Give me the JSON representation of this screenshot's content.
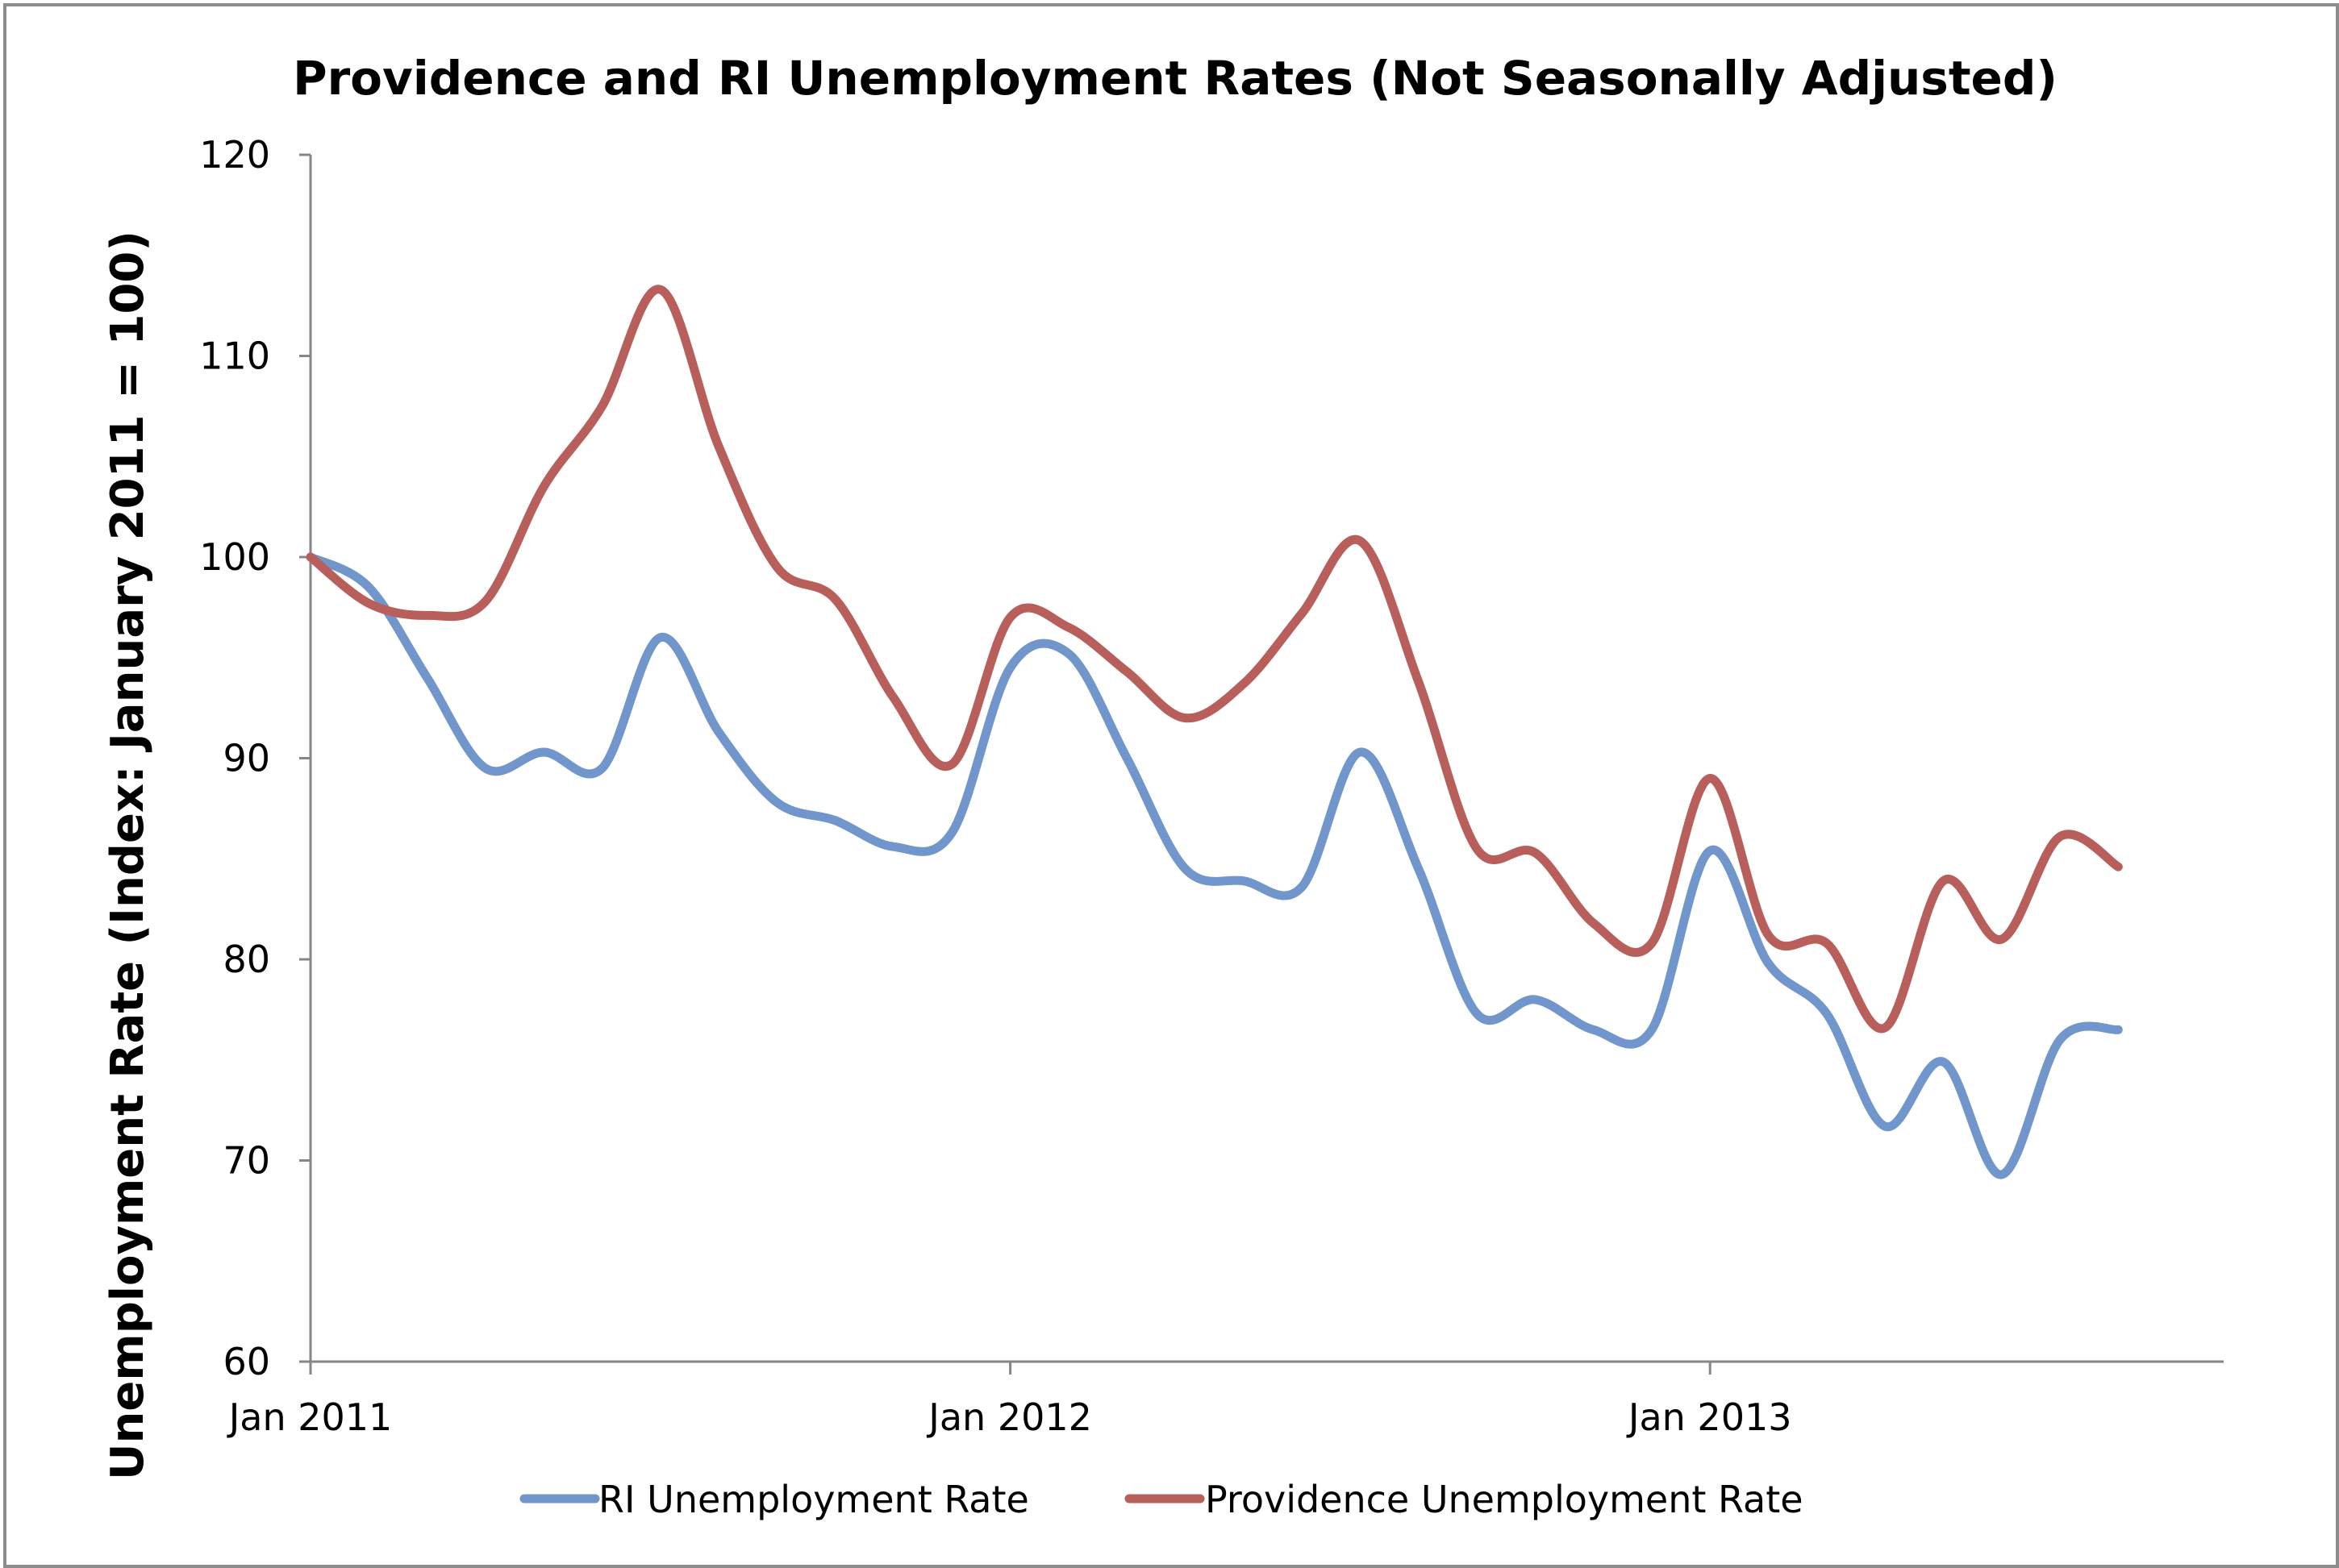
{
  "chart_data": {
    "type": "line",
    "title": "Providence and RI Unemployment Rates (Not Seasonally Adjusted)",
    "ylabel": "Unemployment Rate (Index: January 2011 = 100)",
    "xlabel": "",
    "ylim": [
      60,
      120
    ],
    "yticks": [
      60,
      70,
      80,
      90,
      100,
      110,
      120
    ],
    "x_range": [
      "2011-01",
      "2013-09"
    ],
    "xticks": [
      {
        "x": "2011-01",
        "label": "Jan 2011"
      },
      {
        "x": "2012-01",
        "label": "Jan 2012"
      },
      {
        "x": "2013-01",
        "label": "Jan 2013"
      }
    ],
    "x": [
      "2011-01",
      "2011-02",
      "2011-03",
      "2011-04",
      "2011-05",
      "2011-06",
      "2011-07",
      "2011-08",
      "2011-09",
      "2011-10",
      "2011-11",
      "2011-12",
      "2012-01",
      "2012-02",
      "2012-03",
      "2012-04",
      "2012-05",
      "2012-06",
      "2012-07",
      "2012-08",
      "2012-09",
      "2012-10",
      "2012-11",
      "2012-12",
      "2013-01",
      "2013-02",
      "2013-03",
      "2013-04",
      "2013-05",
      "2013-06",
      "2013-07",
      "2013-08"
    ],
    "series": [
      {
        "name": "RI Unemployment Rate",
        "color": "#7096cb",
        "values": [
          100,
          98.5,
          94,
          89.5,
          90.3,
          89.5,
          96,
          91.3,
          87.8,
          86.9,
          85.6,
          86.3,
          94.5,
          95.2,
          90,
          84.5,
          83.9,
          83.6,
          90.3,
          84.5,
          77.3,
          78,
          76.5,
          76.5,
          85.4,
          79.8,
          77.3,
          71.7,
          74.9,
          69.3,
          76,
          76.5
        ]
      },
      {
        "name": "Providence Unemployment Rate",
        "color": "#b85f5b",
        "values": [
          100,
          97.7,
          97.1,
          97.8,
          103.5,
          107.5,
          113.3,
          105.5,
          99.5,
          97.9,
          93,
          89.7,
          97,
          96.5,
          94.3,
          92,
          93.7,
          97.2,
          100.8,
          93.8,
          85.5,
          85.3,
          81.8,
          80.8,
          89,
          81.2,
          80.8,
          76.6,
          83.9,
          81,
          86.1,
          84.6
        ]
      }
    ],
    "legend": {
      "position": "bottom",
      "entries": [
        "RI Unemployment Rate",
        "Providence Unemployment Rate"
      ]
    },
    "grid": false
  }
}
